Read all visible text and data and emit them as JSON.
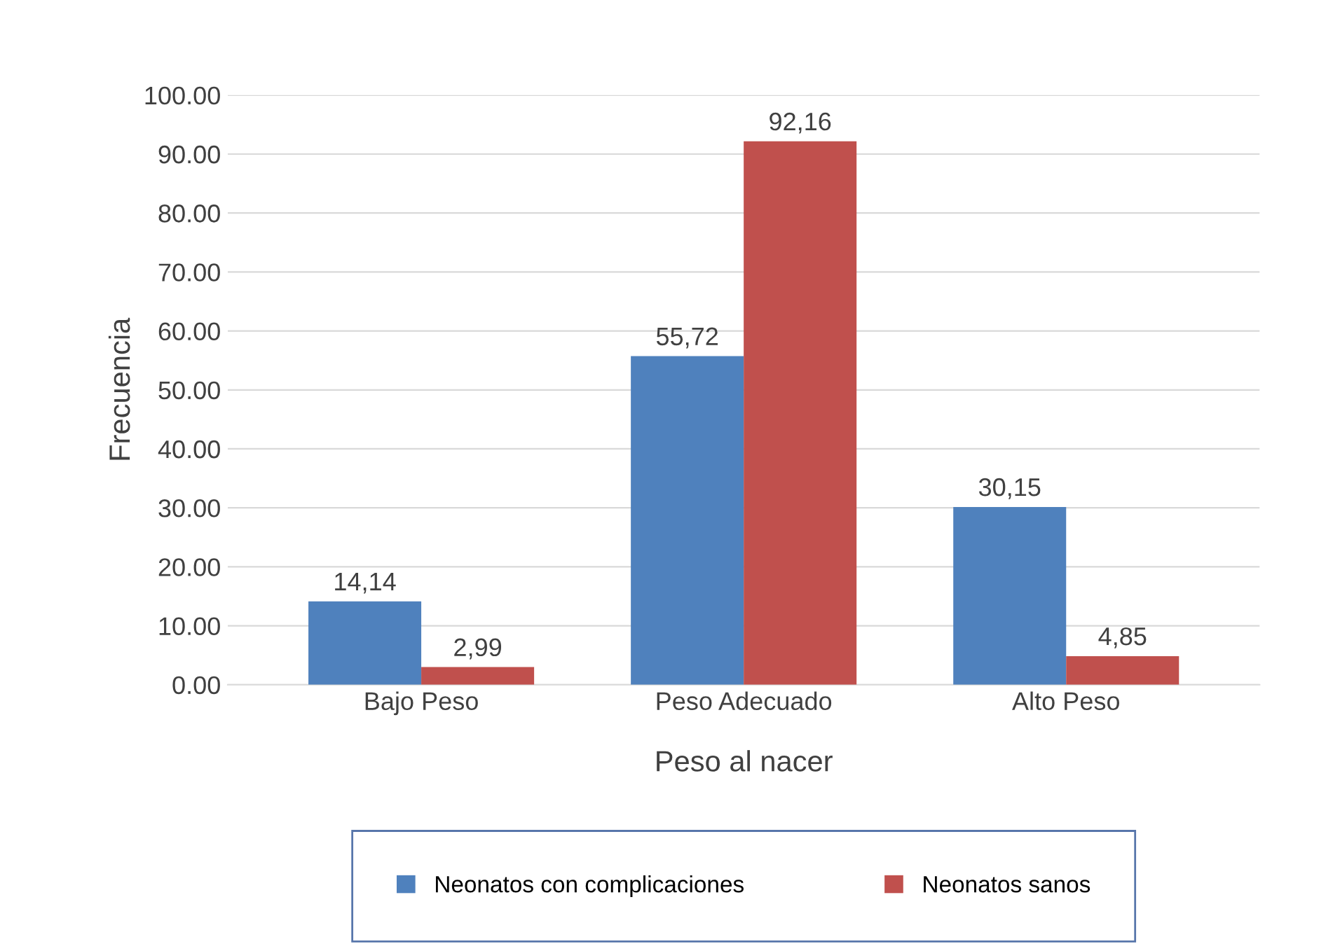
{
  "chart_data": {
    "type": "bar",
    "xlabel": "Peso al nacer",
    "ylabel": "Frecuencia",
    "categories": [
      "Bajo Peso",
      "Peso Adecuado",
      "Alto Peso"
    ],
    "series": [
      {
        "name": "Neonatos con complicaciones",
        "color": "#4f81bd",
        "values": [
          14.14,
          55.72,
          30.15
        ],
        "value_labels": [
          "14,14",
          "55,72",
          "30,15"
        ]
      },
      {
        "name": "Neonatos sanos",
        "color": "#c0504d",
        "values": [
          2.99,
          92.16,
          4.85
        ],
        "value_labels": [
          "2,99",
          "92,16",
          "4,85"
        ]
      }
    ],
    "ylim": [
      0,
      100
    ],
    "yticks": [
      {
        "value": 0,
        "label": "0.00"
      },
      {
        "value": 10,
        "label": "10.00"
      },
      {
        "value": 20,
        "label": "20.00"
      },
      {
        "value": 30,
        "label": "30.00"
      },
      {
        "value": 40,
        "label": "40.00"
      },
      {
        "value": 50,
        "label": "50.00"
      },
      {
        "value": 60,
        "label": "60.00"
      },
      {
        "value": 70,
        "label": "70.00"
      },
      {
        "value": 80,
        "label": "80.00"
      },
      {
        "value": 90,
        "label": "90.00"
      },
      {
        "value": 100,
        "label": "100.00"
      }
    ],
    "grid": "y",
    "legend": "bottom"
  }
}
